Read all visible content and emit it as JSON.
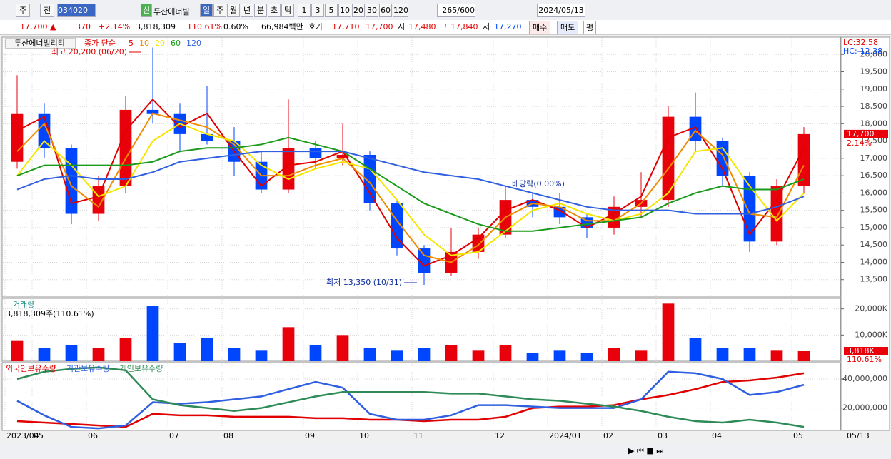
{
  "toolbar": {
    "market": "주",
    "mode": "전",
    "code": "034020",
    "name": "두산에너빌",
    "new_badge": "신",
    "periods": [
      "일",
      "주",
      "월",
      "년",
      "분",
      "초",
      "틱"
    ],
    "intervals": [
      "1",
      "3",
      "5",
      "10",
      "20",
      "30",
      "60",
      "120"
    ],
    "count": "265",
    "max_count": "/600",
    "date": "2024/05/13"
  },
  "quote_bar": {
    "price": "17,700 ▲",
    "change": "370",
    "change_pct": "+2.14%",
    "volume": "3,818,309",
    "volume_ratio": "110.61%",
    "turnover": "0.60%",
    "amount": "66,984백만",
    "bid_label": "호가",
    "ask": "17,710",
    "bid": "17,700",
    "open_label": "시",
    "open": "17,480",
    "high_label": "고",
    "high": "17,840",
    "low_label": "저",
    "low": "17,270",
    "buy": "매수",
    "sell": "매도",
    "avg": "평"
  },
  "chart_data": [
    {
      "type": "candlestick",
      "title": "두산에너빌리티",
      "legend_label": "종가 단순",
      "up_color": "#e8000b",
      "down_color": "#0046ff",
      "open": [
        16900,
        18300,
        17300,
        15400,
        16200,
        18400,
        18300,
        17700,
        17500,
        16900,
        16100,
        17300,
        17000,
        17100,
        15700,
        14400,
        13700,
        14300,
        14800,
        15800,
        15600,
        15300,
        15000,
        15600,
        15800,
        18200,
        17500,
        16500,
        14600,
        16200
      ],
      "high": [
        19400,
        18600,
        17400,
        16500,
        18800,
        20200,
        18600,
        19100,
        17900,
        17200,
        18700,
        17500,
        18000,
        17200,
        15800,
        14500,
        15000,
        15000,
        16200,
        16000,
        16000,
        15400,
        15900,
        16600,
        18500,
        18900,
        17600,
        16600,
        16400,
        17900
      ],
      "low": [
        16700,
        17000,
        15100,
        15200,
        16000,
        18000,
        17200,
        17400,
        16500,
        16000,
        16000,
        16700,
        16800,
        15500,
        14200,
        13350,
        13600,
        14100,
        14700,
        15300,
        15100,
        14700,
        14800,
        15300,
        15600,
        17200,
        16200,
        14300,
        14500,
        16000
      ],
      "close": [
        18300,
        17300,
        15400,
        16200,
        18400,
        18300,
        17700,
        17500,
        16900,
        16100,
        17300,
        17000,
        17100,
        15700,
        14400,
        13700,
        14300,
        14800,
        15800,
        15600,
        15300,
        15000,
        15600,
        15800,
        18200,
        17500,
        16500,
        14600,
        16200,
        17700
      ],
      "series": [
        {
          "name": "5",
          "color": "#e00000",
          "values": [
            17800,
            18200,
            15700,
            15900,
            17800,
            18700,
            17900,
            18300,
            17200,
            16200,
            16800,
            16900,
            17200,
            16000,
            14700,
            13900,
            14200,
            14700,
            15500,
            15800,
            15500,
            15000,
            15400,
            15900,
            17600,
            17900,
            16700,
            14800,
            15800,
            17300
          ]
        },
        {
          "name": "10",
          "color": "#f08c00",
          "values": [
            17200,
            18000,
            16200,
            15600,
            17000,
            18300,
            18100,
            17900,
            17400,
            16500,
            16500,
            16800,
            17000,
            16300,
            15200,
            14200,
            14000,
            14500,
            15300,
            15700,
            15600,
            15200,
            15200,
            15700,
            16700,
            17800,
            17100,
            15400,
            15300,
            16800
          ]
        },
        {
          "name": "20",
          "color": "#f5e600",
          "values": [
            16500,
            17500,
            16800,
            15900,
            16200,
            17500,
            18000,
            17700,
            17500,
            16800,
            16400,
            16700,
            16900,
            16700,
            15800,
            14800,
            14200,
            14300,
            14900,
            15500,
            15700,
            15400,
            15200,
            15400,
            16000,
            17200,
            17300,
            16200,
            15200,
            16000
          ]
        },
        {
          "name": "60",
          "color": "#1a9a1a",
          "values": [
            16500,
            16800,
            16800,
            16800,
            16800,
            16900,
            17200,
            17300,
            17300,
            17400,
            17600,
            17400,
            17200,
            16700,
            16200,
            15700,
            15400,
            15100,
            14900,
            14900,
            15000,
            15100,
            15200,
            15300,
            15700,
            16000,
            16200,
            16100,
            16100,
            16400
          ]
        },
        {
          "name": "120",
          "color": "#3060e0",
          "values": [
            16100,
            16400,
            16500,
            16400,
            16400,
            16600,
            16900,
            17000,
            17100,
            17200,
            17200,
            17200,
            17200,
            17000,
            16800,
            16600,
            16500,
            16400,
            16200,
            16000,
            15800,
            15600,
            15500,
            15500,
            15500,
            15400,
            15400,
            15400,
            15600,
            15900
          ]
        }
      ],
      "ylim": [
        13000,
        20500
      ],
      "yticks": [
        {
          "value": 13500,
          "label": "13,500"
        },
        {
          "value": 14000,
          "label": "14,000"
        },
        {
          "value": 14500,
          "label": "14,500"
        },
        {
          "value": 15000,
          "label": "15,000"
        },
        {
          "value": 15500,
          "label": "15,500"
        },
        {
          "value": 16000,
          "label": "16,000"
        },
        {
          "value": 16500,
          "label": "16,500"
        },
        {
          "value": 17000,
          "label": "17,000"
        },
        {
          "value": 17500,
          "label": "17,500"
        },
        {
          "value": 18000,
          "label": "18,000"
        },
        {
          "value": 18500,
          "label": "18,500"
        },
        {
          "value": 19000,
          "label": "19,000"
        },
        {
          "value": 19500,
          "label": "19,500"
        },
        {
          "value": 20000,
          "label": "20,000"
        }
      ],
      "grid": true,
      "annotations": {
        "high": "최고 20,200 (06/20)",
        "low": "최저 13,350 (10/31)",
        "dividend": "배당락(0.00%)"
      },
      "lc_label": "LC:32.58",
      "hc_label": "HC:-12.38",
      "last_label": "17,700",
      "last_change": "2.14%"
    },
    {
      "type": "bar",
      "title": "거래량",
      "subtitle": "3,818,309주(110.61%)",
      "values": [
        8000,
        5000,
        6000,
        5000,
        9000,
        21000,
        7000,
        9000,
        5000,
        4000,
        13000,
        6000,
        10000,
        5000,
        4000,
        5000,
        6000,
        4000,
        6000,
        3000,
        4000,
        3000,
        5000,
        4000,
        22000,
        9000,
        5000,
        5000,
        4000,
        3818.309
      ],
      "ylim": [
        0,
        24000
      ],
      "yticks": [
        {
          "value": 10000,
          "label": "10,000K"
        },
        {
          "value": 20000,
          "label": "20,000K"
        }
      ],
      "grid": true,
      "last_label": "3,818K",
      "last_ratio": "110.61%"
    },
    {
      "type": "line",
      "categories": [
        "2023/04",
        "05",
        null,
        "06",
        null,
        null,
        "07",
        null,
        "08",
        null,
        null,
        "09",
        null,
        "10",
        null,
        "11",
        null,
        null,
        "12",
        null,
        "2024/01",
        null,
        "02",
        null,
        "03",
        null,
        "04",
        null,
        null,
        "05"
      ],
      "x_end_label": "05/13",
      "series": [
        {
          "name": "외국인보유수량",
          "color": "#e00000",
          "values": [
            11000000,
            10000000,
            9000000,
            8000000,
            7000000,
            16000000,
            15000000,
            15000000,
            14000000,
            14000000,
            14000000,
            13000000,
            13000000,
            12000000,
            12000000,
            11000000,
            12000000,
            12000000,
            14000000,
            20000000,
            21000000,
            21000000,
            22000000,
            26000000,
            29000000,
            33000000,
            38000000,
            39000000,
            41000000,
            44000000
          ]
        },
        {
          "name": "기관보유수량",
          "color": "#2f5fe0",
          "values": [
            25000000,
            15000000,
            7000000,
            6000000,
            8000000,
            24000000,
            23000000,
            24000000,
            26000000,
            28000000,
            33000000,
            38000000,
            34000000,
            16000000,
            12000000,
            12000000,
            15000000,
            22000000,
            22000000,
            21000000,
            20000000,
            20000000,
            20000000,
            26000000,
            45000000,
            44000000,
            40000000,
            29000000,
            31000000,
            36000000
          ]
        },
        {
          "name": "개인보유수량",
          "color": "#2e8b57",
          "values": [
            40000000,
            45000000,
            47000000,
            48000000,
            46000000,
            26000000,
            22000000,
            20000000,
            18000000,
            20000000,
            24000000,
            28000000,
            31000000,
            31000000,
            31000000,
            31000000,
            30000000,
            30000000,
            28000000,
            26000000,
            25000000,
            23000000,
            21000000,
            18000000,
            14000000,
            11000000,
            10000000,
            12000000,
            10000000,
            7000000
          ]
        }
      ],
      "ylim": [
        4600000,
        51300000
      ],
      "yticks": [
        {
          "value": 20000000,
          "label": "20,000,000"
        },
        {
          "value": 40000000,
          "label": "40,000,000"
        }
      ],
      "grid": true
    }
  ]
}
